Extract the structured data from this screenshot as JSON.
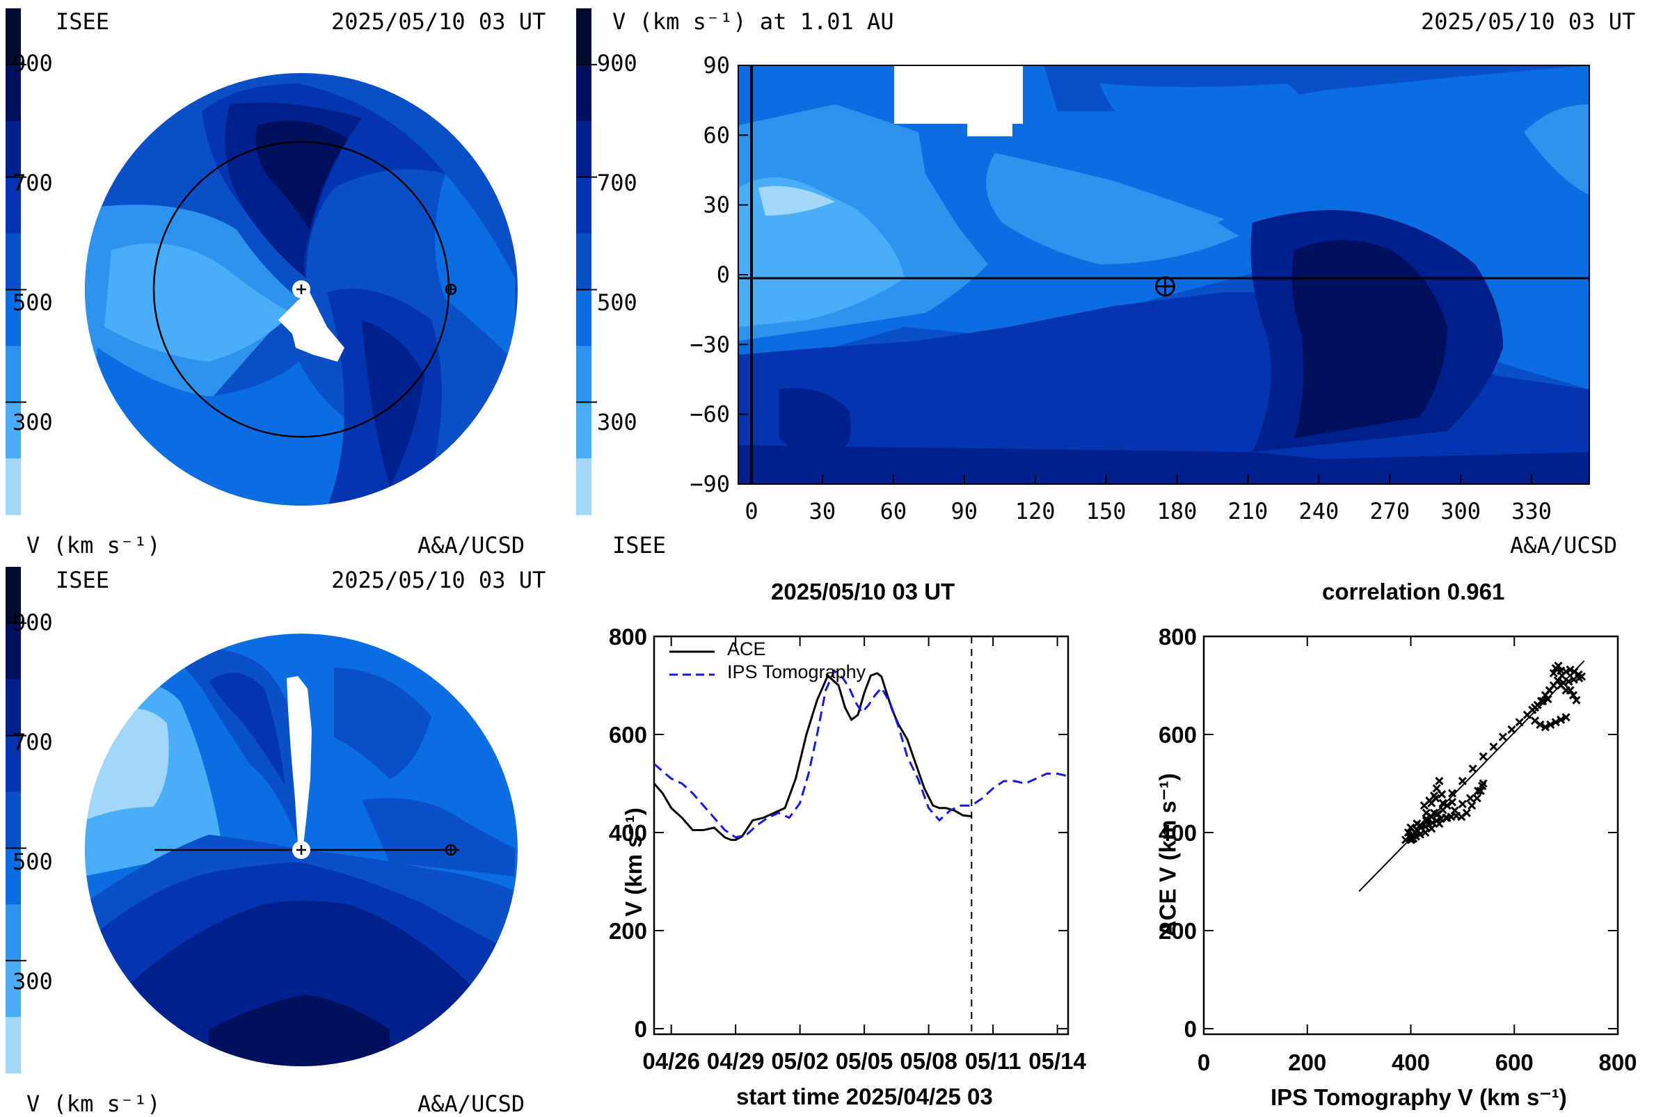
{
  "panels": {
    "polar_top": {
      "source": "ISEE",
      "timestamp": "2025/05/10 03 UT",
      "unit_label": "V (km s⁻¹)",
      "credit": "A&A/UCSD"
    },
    "polar_bottom": {
      "source": "ISEE",
      "timestamp": "2025/05/10 03 UT",
      "unit_label": "V (km s⁻¹)",
      "credit": "A&A/UCSD"
    },
    "map": {
      "title": "V (km s⁻¹) at 1.01 AU",
      "timestamp": "2025/05/10 03 UT",
      "source": "ISEE",
      "credit": "A&A/UCSD"
    }
  },
  "colorbar": {
    "tick_labels": [
      "900",
      "700",
      "500",
      "300"
    ],
    "colors": [
      "#000b33",
      "#001060",
      "#00208e",
      "#0335b0",
      "#0a4fc8",
      "#0a6ee2",
      "#2e93ee",
      "#49aef7",
      "#a3d6fb"
    ],
    "levels": [
      1000,
      900,
      800,
      700,
      600,
      500,
      400,
      300,
      200
    ]
  },
  "colors": {
    "ace": "#000000",
    "ips": "#1818e0",
    "background": "#ffffff"
  },
  "chart_data": [
    {
      "type": "heatmap",
      "title": "V (km s⁻¹) at 1.01 AU",
      "xticks": [
        "0",
        "30",
        "60",
        "90",
        "120",
        "150",
        "180",
        "210",
        "240",
        "270",
        "300",
        "330"
      ],
      "yticks": [
        "90",
        "60",
        "30",
        "0",
        "−30",
        "−60",
        "−90"
      ],
      "xlim": [
        0,
        360
      ],
      "ylim": [
        -90,
        90
      ],
      "earth_marker": [
        175,
        -5
      ]
    },
    {
      "type": "line",
      "title": "2025/05/10 03 UT",
      "xlabel": "start time 2025/04/25 03",
      "ylabel": "V (km s⁻¹)",
      "xticks": [
        "04/26",
        "04/29",
        "05/02",
        "05/05",
        "05/08",
        "05/11",
        "05/14"
      ],
      "xtick_days": [
        1,
        4,
        7,
        10,
        13,
        16,
        19
      ],
      "yticks": [
        "0",
        "200",
        "400",
        "600",
        "800"
      ],
      "xlim": [
        0.2,
        19.5
      ],
      "ylim": [
        0,
        800
      ],
      "vline_day": 15.0,
      "legend_position": "top-left",
      "series": [
        {
          "name": "ACE",
          "style": "solid",
          "x": [
            0.2,
            0.6,
            1.0,
            1.5,
            2.0,
            2.5,
            3.0,
            3.5,
            3.8,
            4.0,
            4.3,
            4.8,
            5.3,
            5.8,
            6.3,
            6.8,
            7.3,
            7.8,
            8.3,
            8.8,
            9.1,
            9.4,
            9.7,
            10.0,
            10.3,
            10.6,
            10.8,
            11.0,
            11.3,
            11.6,
            12.0,
            12.4,
            12.8,
            13.2,
            13.5,
            13.8,
            14.2,
            14.6,
            15.0
          ],
          "y": [
            500,
            480,
            450,
            430,
            405,
            405,
            410,
            390,
            385,
            385,
            392,
            425,
            430,
            440,
            450,
            510,
            600,
            670,
            720,
            700,
            655,
            630,
            640,
            685,
            720,
            725,
            718,
            690,
            650,
            620,
            590,
            540,
            490,
            455,
            450,
            450,
            445,
            435,
            433
          ]
        },
        {
          "name": "IPS Tomography",
          "style": "dashed",
          "x": [
            0.2,
            0.6,
            1.0,
            1.5,
            2.0,
            2.5,
            3.0,
            3.5,
            4.0,
            4.5,
            5.0,
            5.5,
            6.0,
            6.5,
            7.0,
            7.4,
            7.8,
            8.2,
            8.6,
            9.0,
            9.3,
            9.6,
            9.9,
            10.2,
            10.5,
            10.8,
            11.2,
            11.6,
            12.0,
            12.5,
            13.0,
            13.5,
            14.0,
            14.5,
            15.0,
            15.5,
            16.0,
            16.5,
            17.0,
            17.5,
            18.0,
            18.5,
            19.0,
            19.5
          ],
          "y": [
            540,
            525,
            510,
            500,
            480,
            455,
            430,
            405,
            390,
            395,
            415,
            430,
            440,
            430,
            460,
            520,
            600,
            690,
            730,
            715,
            695,
            665,
            645,
            660,
            680,
            695,
            665,
            615,
            555,
            510,
            450,
            425,
            445,
            455,
            455,
            470,
            490,
            505,
            505,
            500,
            510,
            520,
            520,
            515
          ]
        }
      ]
    },
    {
      "type": "scatter",
      "title": "correlation 0.961",
      "xlabel": "IPS Tomography V (km s⁻¹)",
      "ylabel": "ACE V (km s⁻¹)",
      "xticks": [
        "0",
        "200",
        "400",
        "600",
        "800"
      ],
      "yticks": [
        "0",
        "200",
        "400",
        "600",
        "800"
      ],
      "xlim": [
        0,
        800
      ],
      "ylim": [
        0,
        800
      ],
      "fit_line": {
        "x": [
          300,
          735
        ],
        "y": [
          280,
          750
        ]
      },
      "points": {
        "x": [
          390,
          398,
          405,
          412,
          420,
          428,
          435,
          442,
          450,
          458,
          468,
          478,
          488,
          498,
          508,
          518,
          528,
          535,
          540,
          538,
          530,
          515,
          500,
          485,
          470,
          455,
          440,
          428,
          418,
          410,
          405,
          402,
          400,
          402,
          408,
          418,
          430,
          445,
          462,
          480,
          500,
          520,
          540,
          560,
          578,
          595,
          610,
          625,
          640,
          652,
          660,
          668,
          676,
          684,
          692,
          700,
          708,
          716,
          724,
          730,
          725,
          715,
          705,
          695,
          690,
          685,
          680,
          676,
          690,
          700,
          708,
          714,
          720,
          700,
          690,
          680,
          670,
          660,
          650,
          640,
          635,
          645,
          655,
          665,
          440,
          445,
          450,
          455,
          460,
          448,
          436,
          426,
          430,
          440,
          452,
          462,
          470,
          480,
          395,
          400,
          412,
          430
        ],
        "y": [
          385,
          390,
          395,
          405,
          410,
          412,
          416,
          420,
          424,
          428,
          430,
          432,
          434,
          432,
          440,
          455,
          470,
          485,
          500,
          495,
          485,
          470,
          458,
          445,
          430,
          418,
          408,
          400,
          396,
          392,
          388,
          386,
          385,
          390,
          400,
          415,
          428,
          440,
          460,
          480,
          505,
          530,
          555,
          575,
          595,
          610,
          625,
          640,
          655,
          668,
          680,
          690,
          700,
          710,
          720,
          728,
          732,
          728,
          722,
          718,
          715,
          712,
          708,
          705,
          730,
          740,
          735,
          725,
          700,
          690,
          690,
          680,
          670,
          635,
          630,
          625,
          620,
          615,
          620,
          628,
          650,
          660,
          668,
          672,
          460,
          475,
          490,
          505,
          478,
          470,
          465,
          455,
          440,
          432,
          438,
          446,
          455,
          462,
          400,
          410,
          418,
          424
        ]
      }
    }
  ]
}
